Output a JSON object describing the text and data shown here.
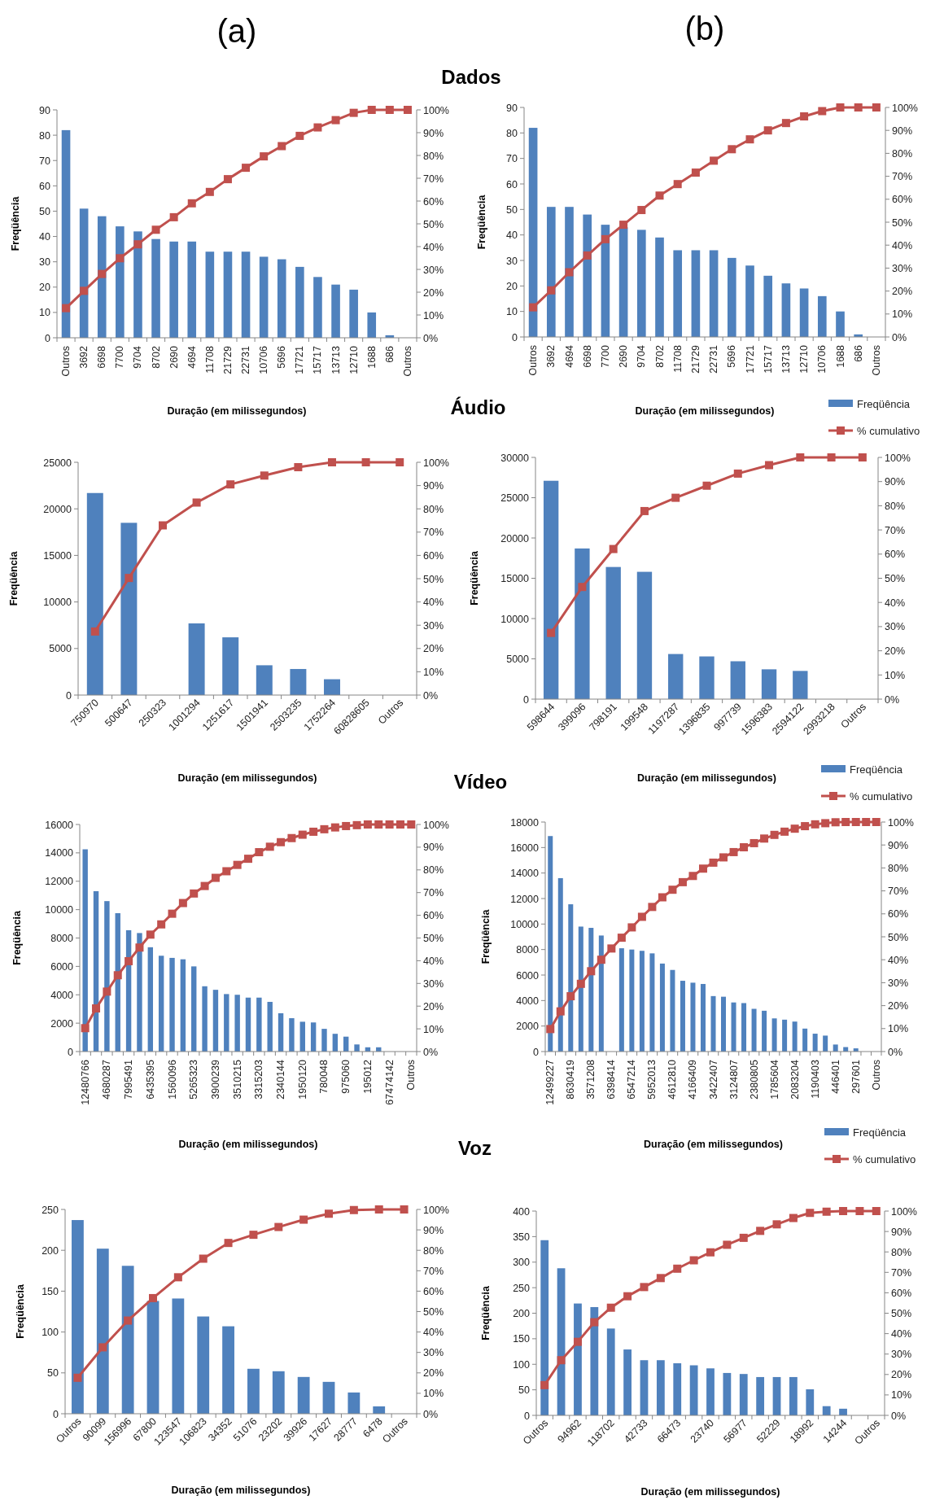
{
  "chart_data": [
    {
      "type": "bar",
      "title": "Dados",
      "annotations": [
        "(a)"
      ],
      "ylabel": "Freqüência",
      "xlabel": "Duração (em milissegundos)",
      "marker": "square",
      "legend": false,
      "categories": [
        "Outros",
        "3692",
        "6698",
        "7700",
        "9704",
        "8702",
        "2690",
        "4694",
        "11708",
        "21729",
        "22731",
        "10706",
        "5696",
        "17721",
        "15717",
        "13713",
        "12710",
        "1688",
        "686",
        "Outros"
      ],
      "ylim": [
        0,
        90
      ],
      "yticks": [
        0,
        10,
        20,
        30,
        40,
        50,
        60,
        70,
        80,
        90
      ],
      "y2lim": [
        0,
        100
      ],
      "y2ticks": [
        {
          "value": 0,
          "label": "0%"
        },
        {
          "value": 10,
          "label": "10%"
        },
        {
          "value": 20,
          "label": "20%"
        },
        {
          "value": 30,
          "label": "30%"
        },
        {
          "value": 40,
          "label": "40%"
        },
        {
          "value": 50,
          "label": "50%"
        },
        {
          "value": 60,
          "label": "60%"
        },
        {
          "value": 70,
          "label": "70%"
        },
        {
          "value": 80,
          "label": "80%"
        },
        {
          "value": 90,
          "label": "90%"
        },
        {
          "value": 100,
          "label": "100%"
        }
      ],
      "series": [
        {
          "color": "#4f81bd",
          "values": [
            82,
            51,
            48,
            44,
            42,
            39,
            38,
            38,
            34,
            34,
            34,
            32,
            31,
            28,
            24,
            21,
            19,
            10,
            1,
            0
          ]
        },
        {
          "type": "line",
          "axis": "y2",
          "color": "#c0504d",
          "values": [
            13,
            20.6,
            28,
            34.9,
            41,
            47.4,
            52.9,
            59,
            64,
            69.6,
            74.6,
            79.6,
            84.1,
            88.6,
            92.3,
            95.5,
            98.7,
            100,
            100,
            100
          ]
        }
      ]
    },
    {
      "type": "bar",
      "annotations": [
        "(b)"
      ],
      "ylabel": "Freqüência",
      "xlabel": "Duração (em milissegundos)",
      "marker": "square",
      "legend": "bottom right",
      "categories": [
        "Outros",
        "3692",
        "4694",
        "6698",
        "7700",
        "2690",
        "9704",
        "8702",
        "11708",
        "21729",
        "22731",
        "5696",
        "17721",
        "15717",
        "13713",
        "12710",
        "10706",
        "1688",
        "686",
        "Outros"
      ],
      "ylim": [
        0,
        90
      ],
      "yticks": [
        0,
        10,
        20,
        30,
        40,
        50,
        60,
        70,
        80,
        90
      ],
      "y2lim": [
        0,
        100
      ],
      "y2ticks": [
        {
          "value": 0,
          "label": "0%"
        },
        {
          "value": 10,
          "label": "10%"
        },
        {
          "value": 20,
          "label": "20%"
        },
        {
          "value": 30,
          "label": "30%"
        },
        {
          "value": 40,
          "label": "40%"
        },
        {
          "value": 50,
          "label": "50%"
        },
        {
          "value": 60,
          "label": "60%"
        },
        {
          "value": 70,
          "label": "70%"
        },
        {
          "value": 80,
          "label": "80%"
        },
        {
          "value": 90,
          "label": "90%"
        },
        {
          "value": 100,
          "label": "100%"
        }
      ],
      "series": [
        {
          "name": "Freqüência",
          "color": "#4f81bd",
          "values": [
            82,
            51,
            51,
            48,
            44,
            43,
            42,
            39,
            34,
            34,
            34,
            31,
            28,
            24,
            21,
            19,
            16,
            10,
            1,
            0
          ]
        },
        {
          "name": "% cumulativo",
          "type": "line",
          "axis": "y2",
          "color": "#c0504d",
          "values": [
            12.9,
            20.3,
            28.2,
            35.5,
            42.6,
            48.9,
            55.3,
            61.6,
            66.6,
            71.6,
            76.8,
            81.8,
            86.1,
            90,
            93.2,
            96.1,
            98.4,
            100,
            100,
            100
          ]
        }
      ]
    },
    {
      "type": "bar",
      "title": "Áudio",
      "ylabel": "Freqüência",
      "xlabel": "Duração (em milissegundos)",
      "marker": "square",
      "legend": false,
      "categories": [
        "750970",
        "500647",
        "250323",
        "1001294",
        "1251617",
        "1501941",
        "2503235",
        "1752264",
        "60828605",
        "Outros"
      ],
      "ylim": [
        0,
        25000
      ],
      "yticks": [
        0,
        5000,
        10000,
        15000,
        20000,
        25000
      ],
      "y2lim": [
        0,
        100
      ],
      "y2ticks": [
        {
          "value": 0,
          "label": "0%"
        },
        {
          "value": 10,
          "label": "10%"
        },
        {
          "value": 20,
          "label": "20%"
        },
        {
          "value": 30,
          "label": "30%"
        },
        {
          "value": 40,
          "label": "40%"
        },
        {
          "value": 50,
          "label": "50%"
        },
        {
          "value": 60,
          "label": "60%"
        },
        {
          "value": 70,
          "label": "70%"
        },
        {
          "value": 80,
          "label": "80%"
        },
        {
          "value": 90,
          "label": "90%"
        },
        {
          "value": 100,
          "label": "100%"
        }
      ],
      "series": [
        {
          "color": "#4f81bd",
          "values": [
            21700,
            18500,
            null,
            7700,
            6200,
            3200,
            2800,
            1700,
            0,
            0
          ]
        },
        {
          "type": "line",
          "axis": "y2",
          "color": "#c0504d",
          "values": [
            27.3,
            50.3,
            72.9,
            82.7,
            90.5,
            94.3,
            97.9,
            100,
            100,
            100
          ]
        }
      ]
    },
    {
      "type": "bar",
      "ylabel": "Freqüência",
      "xlabel": "Duração (em milissegundos)",
      "marker": "square",
      "legend": "bottom right",
      "categories": [
        "598644",
        "399096",
        "798191",
        "199548",
        "1197287",
        "1396835",
        "997739",
        "1596383",
        "2594122",
        "2993218",
        "Outros"
      ],
      "ylim": [
        0,
        30000
      ],
      "yticks": [
        0,
        5000,
        10000,
        15000,
        20000,
        25000,
        30000
      ],
      "y2lim": [
        0,
        100
      ],
      "y2ticks": [
        {
          "value": 0,
          "label": "0%"
        },
        {
          "value": 10,
          "label": "10%"
        },
        {
          "value": 20,
          "label": "20%"
        },
        {
          "value": 30,
          "label": "30%"
        },
        {
          "value": 40,
          "label": "40%"
        },
        {
          "value": 50,
          "label": "50%"
        },
        {
          "value": 60,
          "label": "60%"
        },
        {
          "value": 70,
          "label": "70%"
        },
        {
          "value": 80,
          "label": "80%"
        },
        {
          "value": 90,
          "label": "90%"
        },
        {
          "value": 100,
          "label": "100%"
        }
      ],
      "series": [
        {
          "name": "Freqüência",
          "color": "#4f81bd",
          "values": [
            27100,
            18700,
            16400,
            15800,
            5600,
            5300,
            4700,
            3700,
            3500,
            0,
            0
          ]
        },
        {
          "name": "% cumulativo",
          "type": "line",
          "axis": "y2",
          "color": "#c0504d",
          "values": [
            27.4,
            46.4,
            62.1,
            77.8,
            83.3,
            88.3,
            93.3,
            96.8,
            100,
            100,
            100
          ]
        }
      ]
    },
    {
      "type": "bar",
      "title": "Vídeo",
      "ylabel": "Freqüência",
      "xlabel": "Duração (em milissegundos)",
      "marker": "square",
      "legend": false,
      "categories": [
        "12480766",
        null,
        "4680287",
        null,
        "7995491",
        null,
        "6435395",
        null,
        "1560096",
        null,
        "5265323",
        null,
        "3900239",
        null,
        "3510215",
        null,
        "3315203",
        null,
        "2340144",
        null,
        "1950120",
        null,
        "780048",
        null,
        "975060",
        null,
        "195012",
        null,
        "67474142",
        null,
        "Outros"
      ],
      "ylim": [
        0,
        16000
      ],
      "yticks": [
        0,
        2000,
        4000,
        6000,
        8000,
        10000,
        12000,
        14000,
        16000
      ],
      "y2lim": [
        0,
        100
      ],
      "y2ticks": [
        {
          "value": 0,
          "label": "0%"
        },
        {
          "value": 10,
          "label": "10%"
        },
        {
          "value": 20,
          "label": "20%"
        },
        {
          "value": 30,
          "label": "30%"
        },
        {
          "value": 40,
          "label": "40%"
        },
        {
          "value": 50,
          "label": "50%"
        },
        {
          "value": 60,
          "label": "60%"
        },
        {
          "value": 70,
          "label": "70%"
        },
        {
          "value": 80,
          "label": "80%"
        },
        {
          "value": 90,
          "label": "90%"
        },
        {
          "value": 100,
          "label": "100%"
        }
      ],
      "series": [
        {
          "color": "#4f81bd",
          "values": [
            14250,
            11300,
            10600,
            9750,
            8550,
            8350,
            7350,
            6750,
            6600,
            6500,
            6000,
            4600,
            4350,
            4050,
            4000,
            3800,
            3800,
            3500,
            2700,
            2350,
            2100,
            2050,
            1600,
            1250,
            1050,
            500,
            300,
            300,
            0,
            0,
            0
          ]
        },
        {
          "type": "line",
          "axis": "y2",
          "color": "#c0504d",
          "values": [
            10.3,
            19,
            26.4,
            33.6,
            39.8,
            45.8,
            51.5,
            56,
            60.7,
            65.4,
            69.6,
            72.9,
            76.5,
            79.4,
            82.2,
            84.9,
            87.8,
            90.2,
            92.2,
            94,
            95.5,
            96.8,
            97.9,
            98.7,
            99.3,
            99.7,
            100,
            100,
            100,
            100,
            100
          ]
        }
      ]
    },
    {
      "type": "bar",
      "ylabel": "Freqüência",
      "xlabel": "Duração (em milissegundos)",
      "marker": "square",
      "legend": "bottom right",
      "categories": [
        "12499227",
        null,
        "8630419",
        null,
        "3571208",
        null,
        "6398414",
        null,
        "6547214",
        null,
        "5952013",
        null,
        "4612810",
        null,
        "4166409",
        null,
        "3422407",
        null,
        "3124807",
        null,
        "2380805",
        null,
        "1785604",
        null,
        "2083204",
        null,
        "1190403",
        null,
        "446401",
        null,
        "297601",
        null,
        "Outros"
      ],
      "ylim": [
        0,
        18000
      ],
      "yticks": [
        0,
        2000,
        4000,
        6000,
        8000,
        10000,
        12000,
        14000,
        16000,
        18000
      ],
      "y2lim": [
        0,
        100
      ],
      "y2ticks": [
        {
          "value": 0,
          "label": "0%"
        },
        {
          "value": 10,
          "label": "10%"
        },
        {
          "value": 20,
          "label": "20%"
        },
        {
          "value": 30,
          "label": "30%"
        },
        {
          "value": 40,
          "label": "40%"
        },
        {
          "value": 50,
          "label": "50%"
        },
        {
          "value": 60,
          "label": "60%"
        },
        {
          "value": 70,
          "label": "70%"
        },
        {
          "value": 80,
          "label": "80%"
        },
        {
          "value": 90,
          "label": "90%"
        },
        {
          "value": 100,
          "label": "100%"
        }
      ],
      "series": [
        {
          "name": "Freqüência",
          "color": "#4f81bd",
          "values": [
            16900,
            13600,
            11550,
            9800,
            9700,
            9100,
            null,
            8100,
            8000,
            7900,
            7700,
            6900,
            6400,
            5550,
            5400,
            5300,
            4350,
            4300,
            3850,
            3800,
            3350,
            3200,
            2600,
            2500,
            2350,
            1800,
            1400,
            1250,
            550,
            350,
            250,
            0,
            0
          ]
        },
        {
          "name": "% cumulativo",
          "type": "line",
          "axis": "y2",
          "color": "#c0504d",
          "values": [
            9.8,
            17.5,
            24.1,
            29.5,
            35,
            40,
            44.9,
            49.6,
            54.1,
            58.7,
            63,
            67.2,
            70.5,
            73.8,
            76.5,
            79.7,
            82.3,
            84.6,
            86.9,
            89,
            90.8,
            92.8,
            94.4,
            95.8,
            97.1,
            98.2,
            99,
            99.5,
            99.9,
            100,
            100,
            100,
            100
          ]
        }
      ]
    },
    {
      "type": "bar",
      "title": "Voz",
      "ylabel": "Freqüência",
      "xlabel": "Duração (em milissegundos)",
      "marker": "square",
      "legend": false,
      "categories": [
        "Outros",
        "90099",
        "156996",
        "67800",
        "123547",
        "106823",
        "34352",
        "51076",
        "23202",
        "39926",
        "17627",
        "28777",
        "6478",
        "Outros"
      ],
      "ylim": [
        0,
        250
      ],
      "yticks": [
        0,
        50,
        100,
        150,
        200,
        250
      ],
      "y2lim": [
        0,
        100
      ],
      "y2ticks": [
        {
          "value": 0,
          "label": "0%"
        },
        {
          "value": 10,
          "label": "10%"
        },
        {
          "value": 20,
          "label": "20%"
        },
        {
          "value": 30,
          "label": "30%"
        },
        {
          "value": 40,
          "label": "40%"
        },
        {
          "value": 50,
          "label": "50%"
        },
        {
          "value": 60,
          "label": "60%"
        },
        {
          "value": 70,
          "label": "70%"
        },
        {
          "value": 80,
          "label": "80%"
        },
        {
          "value": 90,
          "label": "90%"
        },
        {
          "value": 100,
          "label": "100%"
        }
      ],
      "series": [
        {
          "color": "#4f81bd",
          "values": [
            237,
            202,
            181,
            138,
            141,
            119,
            107,
            55,
            52,
            45,
            39,
            26,
            9,
            0
          ]
        },
        {
          "type": "line",
          "axis": "y2",
          "color": "#c0504d",
          "values": [
            17.6,
            32.5,
            45.6,
            56.6,
            66.8,
            75.9,
            83.6,
            87.6,
            91.4,
            95,
            97.9,
            99.7,
            100,
            100
          ]
        }
      ]
    },
    {
      "type": "bar",
      "ylabel": "Freqüência",
      "xlabel": "Duração (em milissegundos)",
      "marker": "square",
      "legend": false,
      "categories": [
        "Outros",
        null,
        "94962",
        null,
        "118702",
        null,
        "42733",
        null,
        "66473",
        null,
        "23740",
        null,
        "56977",
        null,
        "52229",
        null,
        "18992",
        null,
        "14244",
        null,
        "Outros"
      ],
      "ylim": [
        0,
        400
      ],
      "yticks": [
        0,
        50,
        100,
        150,
        200,
        250,
        300,
        350,
        400
      ],
      "y2lim": [
        0,
        100
      ],
      "y2ticks": [
        {
          "value": 0,
          "label": "0%"
        },
        {
          "value": 10,
          "label": "10%"
        },
        {
          "value": 20,
          "label": "20%"
        },
        {
          "value": 30,
          "label": "30%"
        },
        {
          "value": 40,
          "label": "40%"
        },
        {
          "value": 50,
          "label": "50%"
        },
        {
          "value": 60,
          "label": "60%"
        },
        {
          "value": 70,
          "label": "70%"
        },
        {
          "value": 80,
          "label": "80%"
        },
        {
          "value": 90,
          "label": "90%"
        },
        {
          "value": 100,
          "label": "100%"
        }
      ],
      "series": [
        {
          "color": "#4f81bd",
          "values": [
            343,
            288,
            219,
            212,
            170,
            129,
            108,
            108,
            102,
            98,
            92,
            83,
            81,
            75,
            75,
            75,
            51,
            18,
            13,
            0,
            0
          ]
        },
        {
          "type": "line",
          "axis": "y2",
          "color": "#c0504d",
          "values": [
            14.8,
            27,
            36,
            45.6,
            52.7,
            58.3,
            62.8,
            67.2,
            71.8,
            75.9,
            79.8,
            83.5,
            86.9,
            90.3,
            93.5,
            96.6,
            99.1,
            99.7,
            100,
            100,
            100
          ]
        }
      ]
    }
  ]
}
